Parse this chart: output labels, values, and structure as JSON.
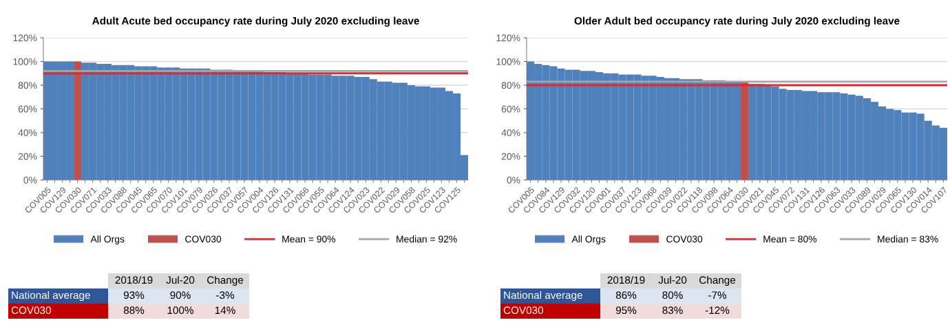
{
  "chart_data": [
    {
      "type": "bar",
      "title": "Adult Acute bed occupancy rate during July 2020 excluding leave",
      "categories": [
        "COV005",
        null,
        "COV129",
        null,
        "COV030",
        null,
        "COV071",
        null,
        "COV033",
        null,
        "COV088",
        null,
        "COV045",
        null,
        "COV065",
        null,
        "COV070",
        null,
        "COV101",
        null,
        "COV079",
        null,
        "COV026",
        null,
        "COV037",
        null,
        "COV057",
        null,
        "COV004",
        null,
        "COV126",
        null,
        "COV131",
        null,
        "COV066",
        null,
        "COV055",
        null,
        "COV064",
        null,
        "COV124",
        null,
        "COV023",
        null,
        "COV022",
        null,
        "COV029",
        null,
        "COV058",
        null,
        "COV025",
        null,
        "COV123",
        null,
        "COV125",
        null
      ],
      "series": [
        {
          "name": "All Orgs",
          "color": "#4f81bd",
          "values": [
            100,
            100,
            100,
            100,
            null,
            99,
            99,
            98,
            98,
            97,
            97,
            97,
            96,
            96,
            96,
            95,
            95,
            95,
            94,
            94,
            94,
            94,
            93,
            93,
            93,
            92,
            92,
            92,
            92,
            91,
            91,
            91,
            90,
            90,
            90,
            89,
            89,
            89,
            88,
            88,
            88,
            87,
            87,
            85,
            83,
            83,
            82,
            82,
            80,
            79,
            79,
            78,
            78,
            75,
            73,
            21
          ]
        },
        {
          "name": "COV030",
          "color": "#c0504d",
          "values": [
            null,
            null,
            null,
            null,
            100,
            null,
            null,
            null,
            null,
            null,
            null,
            null,
            null,
            null,
            null,
            null,
            null,
            null,
            null,
            null,
            null,
            null,
            null,
            null,
            null,
            null,
            null,
            null,
            null,
            null,
            null,
            null,
            null,
            null,
            null,
            null,
            null,
            null,
            null,
            null,
            null,
            null,
            null,
            null,
            null,
            null,
            null,
            null,
            null,
            null,
            null,
            null,
            null,
            null,
            null,
            null
          ]
        }
      ],
      "ref_lines": [
        {
          "axis": "y",
          "value": 90,
          "label": "Mean = 90%",
          "color": "#e8262b",
          "line_style": "solid"
        },
        {
          "axis": "y",
          "value": 92,
          "label": "Median = 92%",
          "color": "#a6a6a6",
          "line_style": "solid"
        }
      ],
      "ylim": [
        0,
        120
      ],
      "yticks": [
        {
          "value": 0,
          "label": "0%"
        },
        {
          "value": 20,
          "label": "20%"
        },
        {
          "value": 40,
          "label": "40%"
        },
        {
          "value": 60,
          "label": "60%"
        },
        {
          "value": 80,
          "label": "80%"
        },
        {
          "value": 100,
          "label": "100%"
        },
        {
          "value": 120,
          "label": "120%"
        }
      ],
      "grid": "y",
      "legend": "bottom",
      "annotations": [
        "2018/19",
        "Jul-20",
        "Change",
        "National average",
        "93%",
        "90%",
        "-3%",
        "COV030",
        "88%",
        "100%",
        "14%"
      ]
    },
    {
      "type": "bar",
      "title": "Older Adult bed occupancy rate during July 2020 excluding leave",
      "categories": [
        "COV005",
        null,
        "COV084",
        null,
        "COV129",
        null,
        "COV032",
        null,
        "COV120",
        null,
        "COV001",
        null,
        "COV037",
        null,
        "COV123",
        null,
        "COV068",
        null,
        "COV039",
        null,
        "COV022",
        null,
        "COV118",
        null,
        "COV098",
        null,
        "COV064",
        null,
        "COV030",
        null,
        "COV021",
        null,
        "COV045",
        null,
        "COV072",
        null,
        "COV131",
        null,
        "COV126",
        null,
        "COV063",
        null,
        "COV033",
        null,
        "COV089",
        null,
        "COV029",
        null,
        "COV065",
        null,
        "COV130",
        null,
        "COV014",
        null,
        "COV107"
      ],
      "series": [
        {
          "name": "All Orgs",
          "color": "#4f81bd",
          "values": [
            100,
            98,
            97,
            96,
            94,
            93,
            93,
            92,
            92,
            91,
            90,
            90,
            89,
            89,
            89,
            88,
            88,
            87,
            86,
            86,
            85,
            85,
            85,
            84,
            84,
            84,
            83,
            83,
            null,
            81,
            81,
            80,
            79,
            77,
            76,
            76,
            75,
            75,
            74,
            74,
            74,
            73,
            72,
            71,
            69,
            66,
            62,
            60,
            59,
            57,
            57,
            56,
            50,
            46,
            44
          ]
        },
        {
          "name": "COV030",
          "color": "#c0504d",
          "values": [
            null,
            null,
            null,
            null,
            null,
            null,
            null,
            null,
            null,
            null,
            null,
            null,
            null,
            null,
            null,
            null,
            null,
            null,
            null,
            null,
            null,
            null,
            null,
            null,
            null,
            null,
            null,
            null,
            83,
            null,
            null,
            null,
            null,
            null,
            null,
            null,
            null,
            null,
            null,
            null,
            null,
            null,
            null,
            null,
            null,
            null,
            null,
            null,
            null,
            null,
            null,
            null,
            null,
            null,
            null
          ]
        }
      ],
      "ref_lines": [
        {
          "axis": "y",
          "value": 80,
          "label": "Mean = 80%",
          "color": "#e8262b",
          "line_style": "solid"
        },
        {
          "axis": "y",
          "value": 83,
          "label": "Median = 83%",
          "color": "#a6a6a6",
          "line_style": "solid"
        }
      ],
      "ylim": [
        0,
        120
      ],
      "yticks": [
        {
          "value": 0,
          "label": "0%"
        },
        {
          "value": 20,
          "label": "20%"
        },
        {
          "value": 40,
          "label": "40%"
        },
        {
          "value": 60,
          "label": "60%"
        },
        {
          "value": 80,
          "label": "80%"
        },
        {
          "value": 100,
          "label": "100%"
        },
        {
          "value": 120,
          "label": "120%"
        }
      ],
      "grid": "y",
      "legend": "bottom",
      "annotations": [
        "2018/19",
        "Jul-20",
        "Change",
        "National average",
        "86%",
        "80%",
        "-7%",
        "COV030",
        "95%",
        "83%",
        "-12%"
      ]
    }
  ]
}
